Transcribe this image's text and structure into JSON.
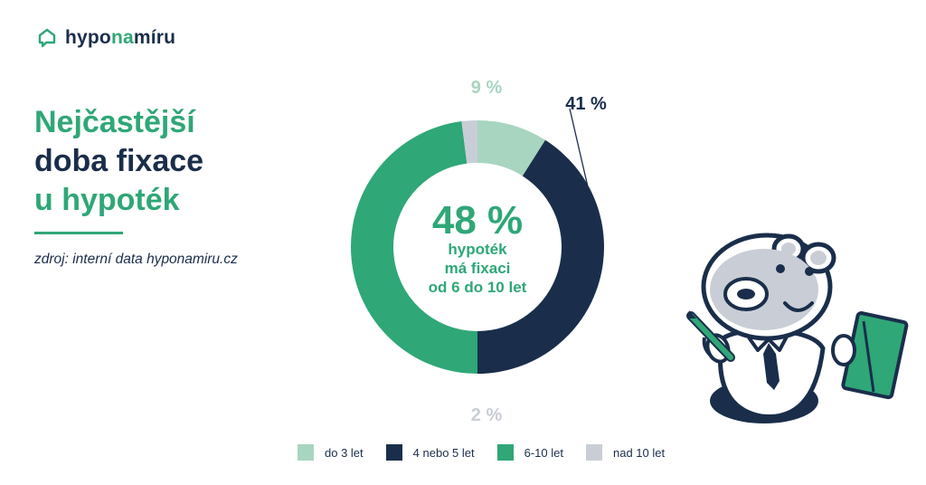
{
  "brand": {
    "part1": "hypo",
    "part2": "na",
    "part3": "míru"
  },
  "title": {
    "line1": "Nejčastější",
    "line2": "doba fixace",
    "line3": "u hypoték"
  },
  "source": "zdroj: interní data hyponamiru.cz",
  "colors": {
    "green": "#2fa777",
    "navy": "#1a2e4b",
    "light_green": "#a8d5c0",
    "grey": "#c9ced6"
  },
  "chart_data": {
    "type": "pie",
    "variant": "donut",
    "categories": [
      "do 3 let",
      "4 nebo 5 let",
      "6-10 let",
      "nad 10 let"
    ],
    "values": [
      9,
      41,
      48,
      2
    ],
    "value_labels": [
      "9 %",
      "41 %",
      "48 %",
      "2 %"
    ],
    "colors": [
      "#a8d5c0",
      "#1a2e4b",
      "#2fa777",
      "#c9ced6"
    ],
    "label_colors": [
      "#a8d5c0",
      "#1a2e4b",
      "#2fa777",
      "#c9ced6"
    ],
    "center_value": "48 %",
    "center_text": [
      "hypoték",
      "má fixaci",
      "od 6 do 10 let"
    ],
    "legend_position": "bottom"
  }
}
